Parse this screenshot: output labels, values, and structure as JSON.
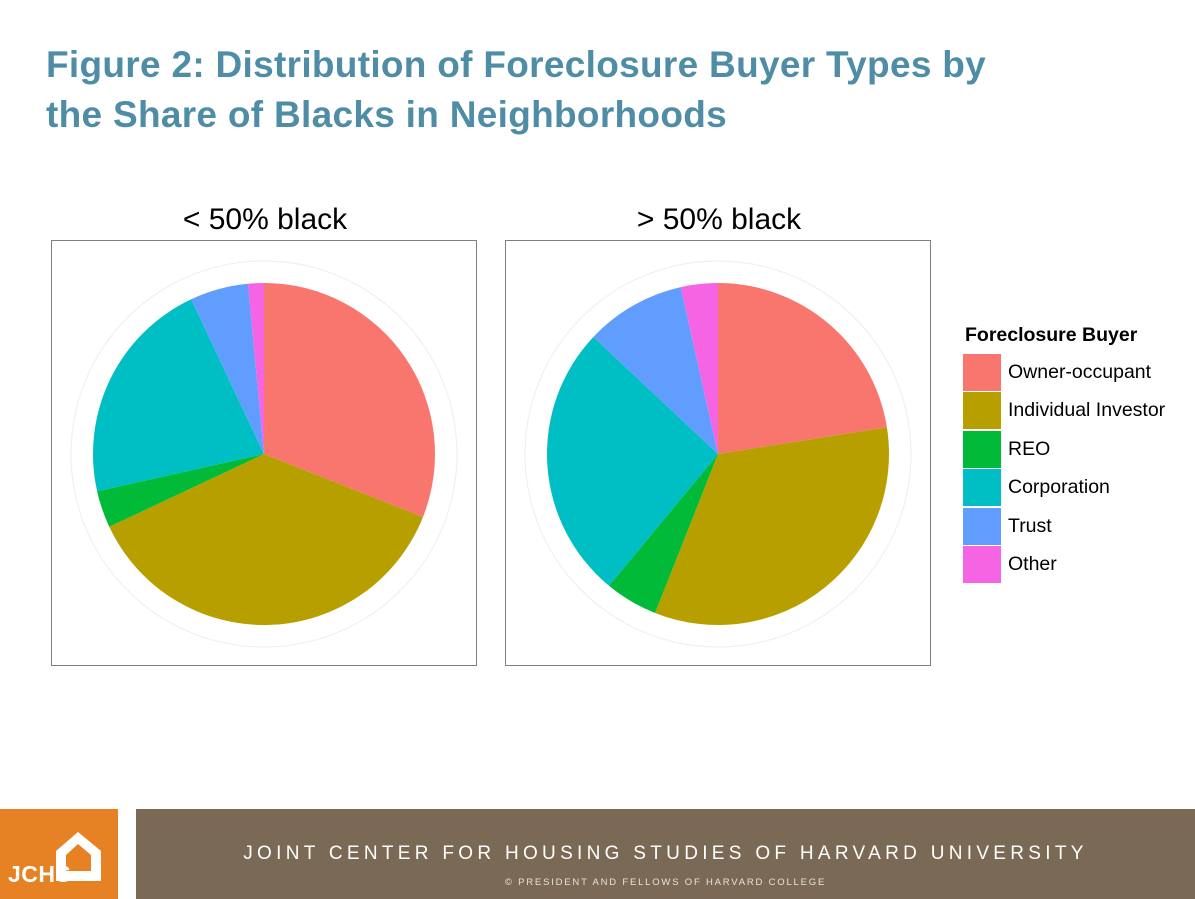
{
  "title_line1": "Figure 2: Distribution of Foreclosure Buyer Types by",
  "title_line2": "the Share of Blacks in Neighborhoods",
  "chart_data": [
    {
      "type": "pie",
      "title": "< 50% black",
      "categories": [
        "Owner-occupant",
        "Individual Investor",
        "REO",
        "Corporation",
        "Trust",
        "Other"
      ],
      "values": [
        31,
        37,
        3.5,
        21.5,
        5.5,
        1.5
      ]
    },
    {
      "type": "pie",
      "title": "> 50% black",
      "categories": [
        "Owner-occupant",
        "Individual Investor",
        "REO",
        "Corporation",
        "Trust",
        "Other"
      ],
      "values": [
        22.5,
        33.5,
        5,
        26,
        9.5,
        3.5
      ]
    }
  ],
  "legend": {
    "title": "Foreclosure Buyer",
    "placement": "right",
    "items": [
      {
        "label": "Owner-occupant",
        "color": "#f8766d"
      },
      {
        "label": "Individual Investor",
        "color": "#b79f00"
      },
      {
        "label": "REO",
        "color": "#00ba38"
      },
      {
        "label": "Corporation",
        "color": "#00bfc4"
      },
      {
        "label": "Trust",
        "color": "#619cff"
      },
      {
        "label": "Other",
        "color": "#f564e3"
      }
    ]
  },
  "footer": {
    "logo_text": "JCHS",
    "main": "JOINT CENTER FOR HOUSING STUDIES OF HARVARD UNIVERSITY",
    "sub": "© PRESIDENT AND FELLOWS OF HARVARD COLLEGE"
  }
}
